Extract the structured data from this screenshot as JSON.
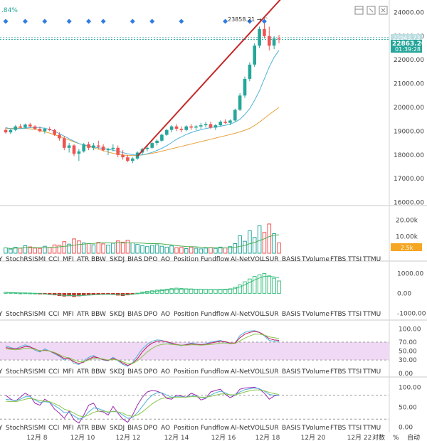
{
  "top_left_label": ".84%",
  "colors": {
    "up": "#26a69a",
    "down": "#ef5350",
    "trend": "#c62828",
    "ma_fast": "#4fb3d9",
    "ma_slow": "#e6a23c",
    "price_line": "#26a69a"
  },
  "icons": [
    "layout-icon",
    "maximize-icon",
    "close-icon"
  ],
  "high_marker": "23858.21 →",
  "last_price": "22863.20",
  "countdown": "01:39:28",
  "ref_price_tag": "22943.73",
  "x_axis": {
    "ticks": [
      "12月 8",
      "12月 10",
      "12月 12",
      "12月 14",
      "12月 16",
      "12月 18",
      "12月 20",
      "12月 22"
    ]
  },
  "bottom_bar": {
    "percent": "%",
    "log": "对数",
    "auto": "自动"
  },
  "indicator_tabs": [
    "Y",
    "StochRSI",
    "SMI",
    "CCI",
    "MFI",
    "ATR",
    "BBW",
    "SKDJ",
    "BIAS",
    "DPO",
    "AO",
    "Position",
    "Fundflow",
    "AI-NetVOL",
    "LSUR",
    "BASIS",
    "TVolume",
    "FTBS",
    "TTSI",
    "TTMU"
  ],
  "volume_badge": "2.5k",
  "chart_data": [
    {
      "type": "candlestick",
      "title": "",
      "y_ticks": [
        "24000.00",
        "23000.00",
        "22000.00",
        "21000.00",
        "20000.00",
        "19000.00",
        "18000.00",
        "17000.00",
        "16000.00"
      ],
      "ylim": [
        15900,
        24400
      ],
      "ohlc": [
        [
          19050,
          19150,
          18900,
          18950
        ],
        [
          18950,
          19100,
          18880,
          19050
        ],
        [
          19050,
          19250,
          19000,
          19200
        ],
        [
          19200,
          19300,
          19120,
          19150
        ],
        [
          19150,
          19320,
          19100,
          19280
        ],
        [
          19280,
          19350,
          19150,
          19200
        ],
        [
          19200,
          19250,
          19050,
          19100
        ],
        [
          19100,
          19200,
          18950,
          19000
        ],
        [
          19000,
          19150,
          18900,
          19100
        ],
        [
          19100,
          19180,
          19000,
          19050
        ],
        [
          19050,
          19100,
          18800,
          18850
        ],
        [
          18850,
          18950,
          18600,
          18700
        ],
        [
          18700,
          18800,
          18200,
          18300
        ],
        [
          18300,
          18500,
          18100,
          18400
        ],
        [
          18400,
          18450,
          17950,
          18050
        ],
        [
          18050,
          18250,
          17750,
          18150
        ],
        [
          18150,
          18500,
          18100,
          18450
        ],
        [
          18450,
          18550,
          18200,
          18300
        ],
        [
          18300,
          18500,
          18200,
          18400
        ],
        [
          18400,
          18600,
          18250,
          18350
        ],
        [
          18350,
          18450,
          18150,
          18200
        ],
        [
          18200,
          18300,
          18000,
          18250
        ],
        [
          18250,
          18450,
          18150,
          18300
        ],
        [
          18300,
          18400,
          17900,
          18000
        ],
        [
          18000,
          18200,
          17800,
          17900
        ],
        [
          17900,
          18000,
          17700,
          17750
        ],
        [
          17750,
          17900,
          17650,
          17850
        ],
        [
          17850,
          18150,
          17800,
          18100
        ],
        [
          18100,
          18300,
          18000,
          18250
        ],
        [
          18250,
          18400,
          18150,
          18300
        ],
        [
          18300,
          18550,
          18250,
          18500
        ],
        [
          18500,
          18650,
          18400,
          18600
        ],
        [
          18600,
          18900,
          18550,
          18850
        ],
        [
          18850,
          19100,
          18800,
          19050
        ],
        [
          19050,
          19250,
          18950,
          19200
        ],
        [
          19200,
          19300,
          19000,
          19100
        ],
        [
          19100,
          19200,
          18950,
          19050
        ],
        [
          19050,
          19250,
          19000,
          19200
        ],
        [
          19200,
          19300,
          19050,
          19150
        ],
        [
          19150,
          19250,
          19050,
          19200
        ],
        [
          19200,
          19350,
          19100,
          19250
        ],
        [
          19250,
          19400,
          19150,
          19300
        ],
        [
          19300,
          19400,
          19100,
          19150
        ],
        [
          19150,
          19300,
          19050,
          19250
        ],
        [
          19250,
          19450,
          19200,
          19400
        ],
        [
          19400,
          19500,
          19300,
          19350
        ],
        [
          19350,
          19500,
          19250,
          19450
        ],
        [
          19450,
          19950,
          19400,
          19900
        ],
        [
          19900,
          20600,
          19850,
          20500
        ],
        [
          20500,
          21300,
          20400,
          21200
        ],
        [
          21200,
          21900,
          21100,
          21800
        ],
        [
          21800,
          22700,
          21700,
          22600
        ],
        [
          22600,
          23400,
          22500,
          23300
        ],
        [
          23300,
          23858,
          22900,
          23000
        ],
        [
          23000,
          23400,
          22400,
          22600
        ],
        [
          22600,
          23000,
          22450,
          22900
        ],
        [
          22900,
          23050,
          22700,
          22863
        ]
      ],
      "ma_fast": [
        19150,
        19100,
        19100,
        19110,
        19130,
        19150,
        19160,
        19150,
        19120,
        19080,
        19000,
        18900,
        18790,
        18680,
        18580,
        18480,
        18420,
        18380,
        18340,
        18300,
        18270,
        18240,
        18200,
        18150,
        18100,
        18050,
        18010,
        17990,
        18000,
        18050,
        18110,
        18190,
        18280,
        18390,
        18520,
        18660,
        18760,
        18860,
        18940,
        19010,
        19060,
        19110,
        19150,
        19180,
        19210,
        19250,
        19300,
        19380,
        19500,
        19700,
        19950,
        20300,
        20700,
        21200,
        21700,
        22100,
        22400
      ],
      "ma_slow": [
        19100,
        19120,
        19130,
        19130,
        19120,
        19100,
        19070,
        19030,
        18980,
        18920,
        18850,
        18780,
        18700,
        18630,
        18550,
        18480,
        18420,
        18360,
        18300,
        18240,
        18180,
        18120,
        18070,
        18030,
        18000,
        17980,
        17970,
        17980,
        18000,
        18030,
        18070,
        18110,
        18160,
        18210,
        18260,
        18310,
        18360,
        18410,
        18460,
        18510,
        18560,
        18610,
        18660,
        18710,
        18760,
        18810,
        18860,
        18910,
        18970,
        19040,
        19120,
        19240,
        19380,
        19540,
        19700,
        19850,
        20000
      ],
      "trendline": [
        [
          27,
          17950
        ],
        [
          57,
          24700
        ]
      ],
      "signal_markers": [
        0,
        4,
        8,
        13,
        17,
        20,
        26,
        30,
        36,
        45,
        50,
        53
      ],
      "high_index": 53
    },
    {
      "type": "bar",
      "title": "Volume",
      "y_ticks": [
        "20.00k",
        "10.00k"
      ],
      "ylim": [
        0,
        24000
      ],
      "values": [
        3200,
        2500,
        3600,
        3000,
        4500,
        3800,
        3100,
        2900,
        4200,
        3500,
        5000,
        4800,
        7000,
        5500,
        8600,
        7400,
        6200,
        5800,
        5100,
        6500,
        5600,
        4900,
        6000,
        7400,
        6700,
        7800,
        6200,
        5300,
        4600,
        4000,
        4800,
        5100,
        4200,
        3700,
        4400,
        3300,
        3500,
        2800,
        3600,
        3000,
        2600,
        3100,
        3400,
        2900,
        3700,
        3200,
        4000,
        5800,
        10500,
        7200,
        13500,
        9500,
        16500,
        12500,
        17600,
        11800,
        6200
      ],
      "up": [
        1,
        1,
        1,
        0,
        1,
        0,
        0,
        0,
        1,
        0,
        0,
        0,
        0,
        1,
        0,
        0,
        1,
        0,
        1,
        0,
        0,
        1,
        1,
        0,
        0,
        0,
        1,
        1,
        1,
        1,
        1,
        1,
        1,
        1,
        1,
        0,
        0,
        1,
        0,
        1,
        1,
        1,
        0,
        1,
        1,
        0,
        1,
        1,
        1,
        1,
        1,
        1,
        1,
        0,
        0,
        1,
        0
      ]
    },
    {
      "type": "bar",
      "title": "AI-NetVOL",
      "y_ticks": [
        "1000.00",
        "0.00",
        "-1000.00"
      ],
      "ylim": [
        -1200,
        1300
      ],
      "values": [
        50,
        40,
        30,
        10,
        20,
        10,
        5,
        -20,
        -40,
        -60,
        -80,
        -110,
        -140,
        -120,
        -160,
        -130,
        -100,
        -80,
        -60,
        -50,
        -40,
        -30,
        -60,
        -90,
        -110,
        -80,
        -40,
        10,
        60,
        100,
        130,
        160,
        190,
        210,
        240,
        260,
        250,
        230,
        220,
        210,
        200,
        195,
        190,
        185,
        200,
        210,
        230,
        300,
        420,
        580,
        720,
        850,
        930,
        1000,
        880,
        760,
        620
      ],
      "line": [
        40,
        35,
        30,
        20,
        15,
        10,
        0,
        -15,
        -30,
        -45,
        -60,
        -80,
        -100,
        -105,
        -120,
        -115,
        -100,
        -90,
        -75,
        -65,
        -55,
        -45,
        -55,
        -70,
        -80,
        -70,
        -50,
        -20,
        20,
        50,
        80,
        110,
        140,
        160,
        180,
        200,
        210,
        210,
        205,
        200,
        195,
        190,
        185,
        180,
        185,
        190,
        200,
        240,
        320,
        430,
        550,
        670,
        770,
        850,
        860,
        830,
        770
      ]
    },
    {
      "type": "line",
      "title": "StochRSI",
      "y_ticks": [
        "100.00",
        "70.00",
        "50.00",
        "30.00",
        "0.00"
      ],
      "ylim": [
        -5,
        110
      ],
      "band": [
        30,
        70
      ],
      "series": [
        {
          "values": [
            62,
            58,
            55,
            60,
            64,
            60,
            52,
            48,
            55,
            50,
            44,
            38,
            30,
            35,
            22,
            20,
            28,
            36,
            40,
            34,
            30,
            28,
            36,
            28,
            20,
            16,
            24,
            40,
            55,
            65,
            72,
            75,
            74,
            70,
            66,
            64,
            62,
            65,
            68,
            66,
            64,
            66,
            70,
            72,
            74,
            70,
            66,
            68,
            85,
            92,
            95,
            96,
            92,
            84,
            74,
            72,
            72
          ]
        },
        {
          "values": [
            58,
            56,
            55,
            57,
            60,
            59,
            55,
            50,
            52,
            50,
            46,
            40,
            33,
            33,
            26,
            22,
            25,
            32,
            37,
            35,
            31,
            29,
            33,
            30,
            23,
            18,
            22,
            33,
            48,
            60,
            68,
            72,
            73,
            71,
            68,
            65,
            63,
            64,
            66,
            65,
            64,
            65,
            68,
            70,
            72,
            71,
            68,
            68,
            80,
            88,
            92,
            94,
            92,
            86,
            78,
            75,
            74
          ]
        },
        {
          "values": [
            55,
            54,
            53,
            54,
            56,
            56,
            54,
            51,
            51,
            50,
            47,
            42,
            37,
            35,
            30,
            26,
            26,
            30,
            34,
            34,
            32,
            30,
            31,
            30,
            26,
            22,
            22,
            28,
            38,
            48,
            56,
            62,
            65,
            66,
            65,
            64,
            63,
            63,
            64,
            64,
            63,
            64,
            65,
            66,
            68,
            68,
            67,
            67,
            73,
            79,
            84,
            88,
            88,
            86,
            82,
            80,
            78
          ]
        }
      ]
    },
    {
      "type": "line",
      "title": "SKDJ",
      "y_ticks": [
        "100.00",
        "50.00",
        "0.00"
      ],
      "ylim": [
        -10,
        115
      ],
      "series": [
        {
          "values": [
            80,
            70,
            65,
            75,
            85,
            78,
            60,
            55,
            70,
            62,
            45,
            35,
            22,
            40,
            18,
            10,
            30,
            55,
            60,
            40,
            38,
            30,
            52,
            35,
            20,
            12,
            30,
            55,
            75,
            88,
            92,
            90,
            85,
            72,
            70,
            80,
            78,
            75,
            85,
            80,
            68,
            72,
            88,
            92,
            95,
            82,
            74,
            80,
            95,
            98,
            99,
            100,
            95,
            85,
            70,
            78,
            80
          ]
        },
        {
          "values": [
            70,
            68,
            66,
            70,
            76,
            76,
            68,
            62,
            64,
            62,
            54,
            46,
            36,
            36,
            28,
            20,
            24,
            38,
            48,
            46,
            42,
            36,
            40,
            38,
            30,
            22,
            24,
            36,
            52,
            68,
            80,
            86,
            86,
            80,
            75,
            76,
            76,
            75,
            78,
            78,
            74,
            73,
            80,
            86,
            90,
            86,
            80,
            80,
            88,
            94,
            96,
            98,
            96,
            90,
            82,
            80,
            80
          ]
        },
        {
          "values": [
            65,
            64,
            64,
            66,
            70,
            72,
            70,
            66,
            65,
            64,
            59,
            53,
            45,
            41,
            35,
            28,
            26,
            30,
            37,
            40,
            40,
            38,
            39,
            38,
            35,
            29,
            27,
            30,
            38,
            48,
            58,
            66,
            72,
            74,
            74,
            75,
            75,
            75,
            76,
            76,
            75,
            75,
            77,
            80,
            83,
            83,
            81,
            81,
            84,
            88,
            91,
            93,
            93,
            91,
            87,
            84,
            82
          ]
        }
      ]
    }
  ]
}
